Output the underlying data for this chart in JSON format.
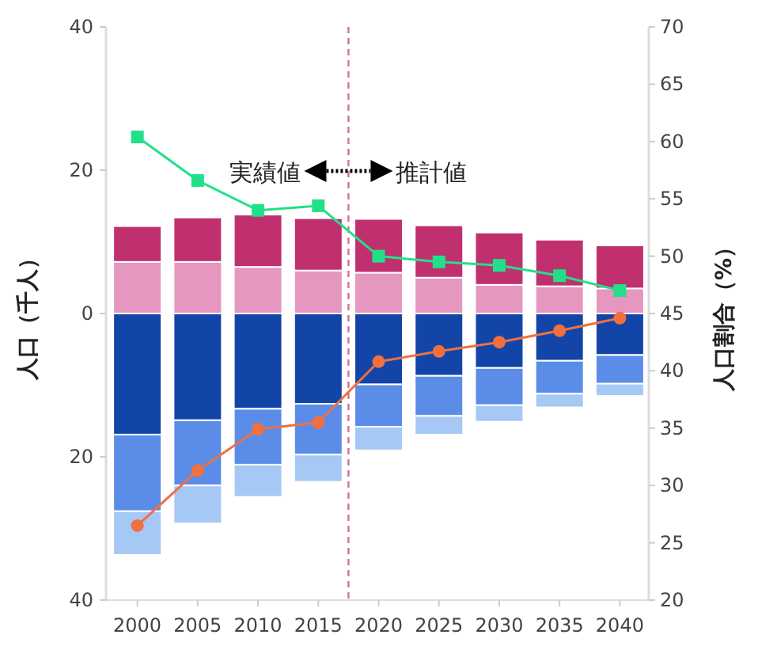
{
  "chart_data": {
    "type": "bar",
    "stacked": true,
    "ylabel": "人口（千人）",
    "y2label": "人口割合（%）",
    "annotations": [
      "実績値",
      "推計値"
    ],
    "x": [
      2000,
      2005,
      2010,
      2015,
      2020,
      2025,
      2030,
      2035,
      2040
    ],
    "xlim": [
      1997.4,
      2042.4
    ],
    "xticks": [
      2000,
      2005,
      2010,
      2015,
      2020,
      2025,
      2030,
      2035,
      2040
    ],
    "ylim": [
      -40,
      40
    ],
    "yticks": [
      {
        "value": -40,
        "label": "40"
      },
      {
        "value": -20,
        "label": "20"
      },
      0,
      20,
      40
    ],
    "y2lim": [
      20,
      70
    ],
    "y2ticks": [
      20,
      25,
      30,
      35,
      40,
      45,
      50,
      55,
      60,
      65,
      70
    ],
    "grid": false,
    "ref_lines": [
      {
        "axis": "x",
        "value": 2017.5,
        "color": "#d87090",
        "line_style": "dashed"
      }
    ],
    "series": [
      {
        "color": "#e697bf",
        "values": [
          7.2,
          7.2,
          6.5,
          6.0,
          5.7,
          5.0,
          4.0,
          3.8,
          3.5
        ]
      },
      {
        "color": "#c0306f",
        "values": [
          5.0,
          6.2,
          7.3,
          7.3,
          7.5,
          7.3,
          7.3,
          6.5,
          6.0
        ]
      },
      {
        "color": "#1345a8",
        "values": [
          -16.9,
          -14.9,
          -13.3,
          -12.6,
          -9.9,
          -8.7,
          -7.6,
          -6.6,
          -5.8
        ]
      },
      {
        "color": "#5b8de8",
        "values": [
          -10.7,
          -9.1,
          -7.8,
          -7.1,
          -5.9,
          -5.6,
          -5.2,
          -4.6,
          -4.0
        ]
      },
      {
        "color": "#a6c8f5",
        "values": [
          -6.1,
          -5.3,
          -4.5,
          -3.8,
          -3.3,
          -2.6,
          -2.3,
          -1.9,
          -1.7
        ]
      },
      {
        "type": "line",
        "axis": "y2",
        "marker": "square",
        "color": "#22e08a",
        "values": [
          60.4,
          56.6,
          54.0,
          54.4,
          50.0,
          49.5,
          49.2,
          48.3,
          47.0
        ]
      },
      {
        "type": "line",
        "axis": "y2",
        "marker": "circle",
        "color": "#f07040",
        "values": [
          26.5,
          31.3,
          34.9,
          35.5,
          40.8,
          41.7,
          42.5,
          43.5,
          44.6
        ]
      }
    ]
  }
}
